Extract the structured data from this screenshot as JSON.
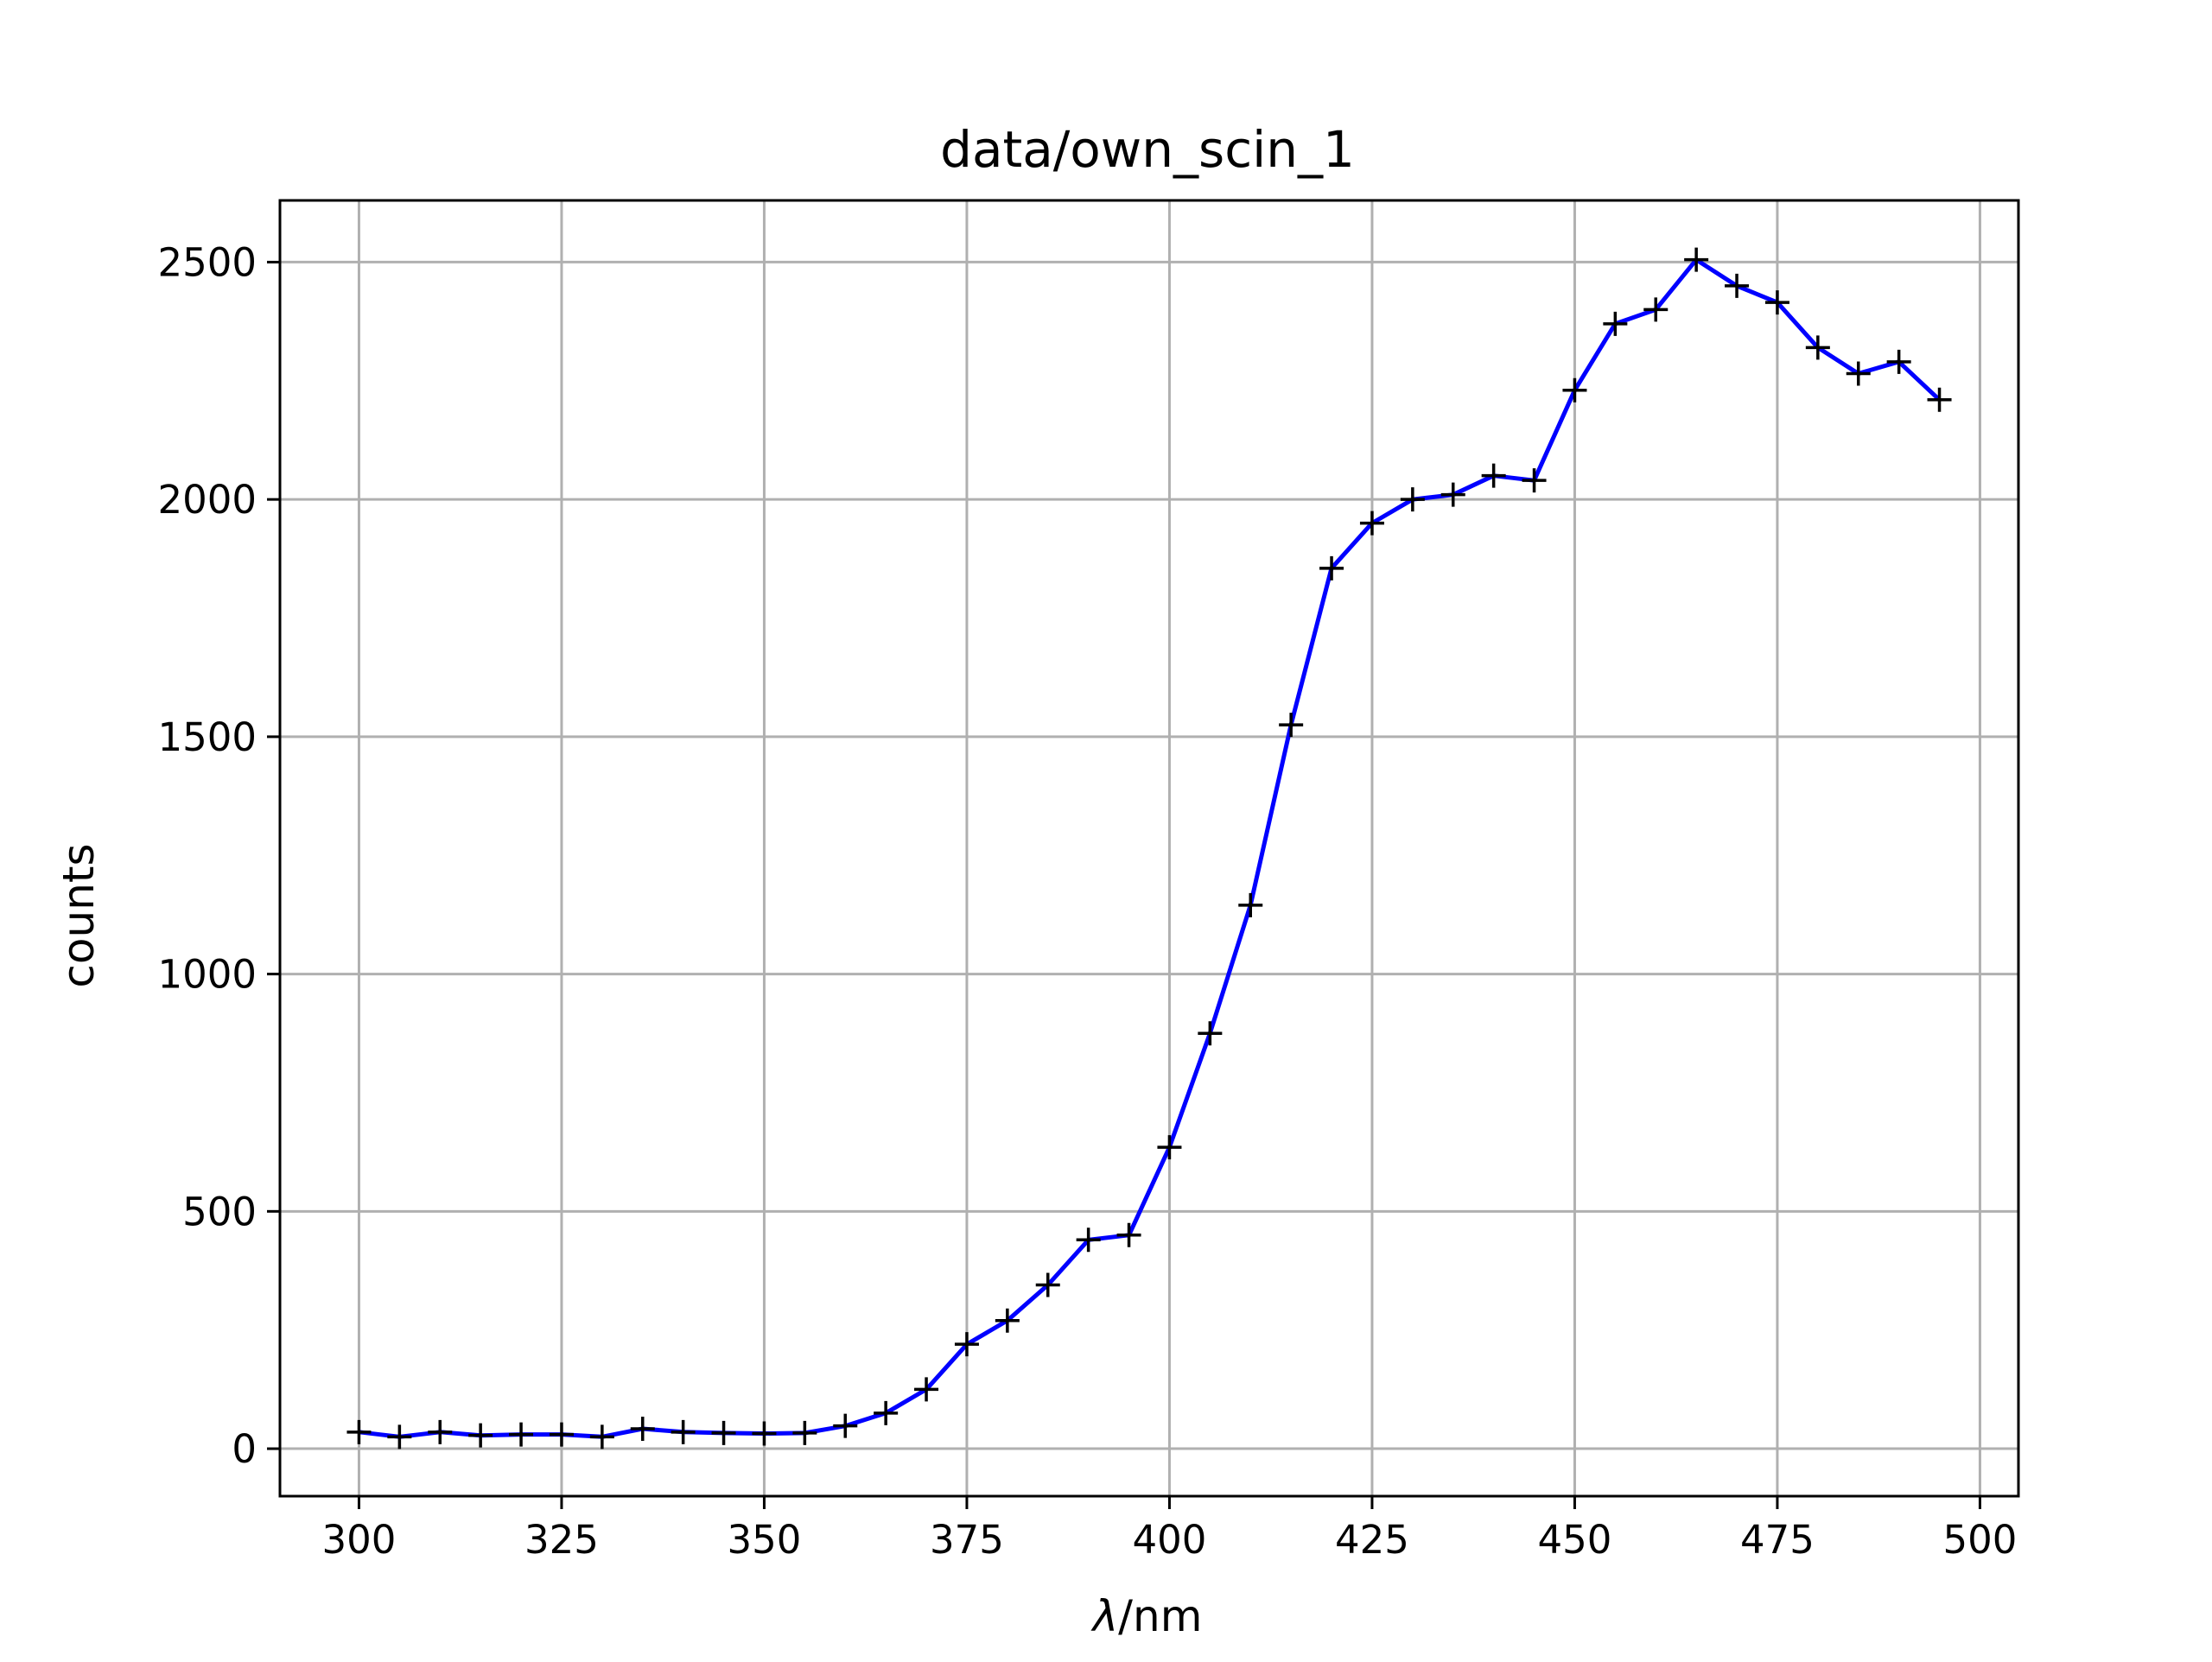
{
  "chart_data": {
    "type": "line",
    "title": "data/own_scin_1",
    "xlabel_var": "λ",
    "xlabel_unit": "/nm",
    "ylabel": "counts",
    "xlim": [
      290.25,
      504.75
    ],
    "ylim": [
      -100,
      2630
    ],
    "grid": true,
    "x_ticks": [
      300,
      325,
      350,
      375,
      400,
      425,
      450,
      475,
      500
    ],
    "y_ticks": [
      0,
      500,
      1000,
      1500,
      2000,
      2500
    ],
    "series": [
      {
        "line_color": "#0000ff",
        "marker": "+",
        "marker_color": "#000000",
        "x": [
          300,
          305,
          310,
          315,
          320,
          325,
          330,
          335,
          340,
          345,
          350,
          355,
          360,
          365,
          370,
          375,
          380,
          385,
          390,
          395,
          400,
          405,
          410,
          415,
          420,
          425,
          430,
          435,
          440,
          445,
          450,
          455,
          460,
          465,
          470,
          475,
          480,
          485,
          490,
          495
        ],
        "y": [
          35,
          25,
          35,
          28,
          30,
          30,
          25,
          42,
          35,
          33,
          32,
          33,
          48,
          75,
          125,
          220,
          270,
          345,
          440,
          450,
          635,
          875,
          1145,
          1525,
          1855,
          1950,
          2000,
          2010,
          2050,
          2040,
          2230,
          2370,
          2400,
          2505,
          2450,
          2415,
          2320,
          2265,
          2290,
          2210
        ]
      }
    ]
  }
}
